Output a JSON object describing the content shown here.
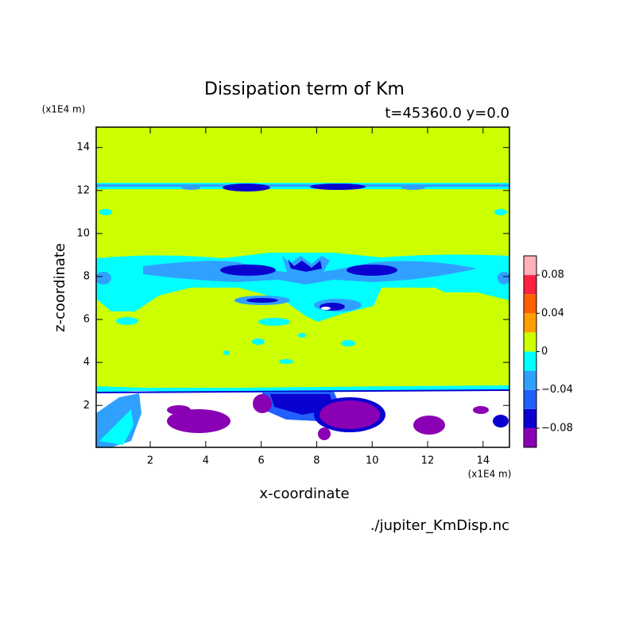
{
  "chart_data": {
    "type": "contour",
    "title": "Dissipation term of Km",
    "subtitle": "t=45360.0 y=0.0",
    "y_unit": "(x1E4 m)",
    "x_unit": "(x1E4 m)",
    "xlabel": "x-coordinate",
    "ylabel": "z-coordinate",
    "source": "./jupiter_KmDisp.nc",
    "xlim": [
      0.05,
      14.95
    ],
    "ylim": [
      0.05,
      14.95
    ],
    "xticks": [
      2,
      4,
      6,
      8,
      10,
      12,
      14
    ],
    "yticks": [
      2,
      4,
      6,
      8,
      10,
      12,
      14
    ],
    "colorbar": {
      "levels": [
        -0.1,
        -0.08,
        -0.06,
        -0.04,
        -0.02,
        0,
        0.02,
        0.04,
        0.06,
        0.08,
        0.1
      ],
      "colors": [
        "#8a00b4",
        "#0a00d0",
        "#2060ff",
        "#30a0ff",
        "#00ffff",
        "#ccff00",
        "#ffa000",
        "#ff6000",
        "#ff2040",
        "#ffb0b8"
      ],
      "ticks": [
        {
          "value": -0.08,
          "label": "−0.08"
        },
        {
          "value": -0.04,
          "label": "−0.04"
        },
        0,
        0.04,
        0.08
      ]
    }
  }
}
